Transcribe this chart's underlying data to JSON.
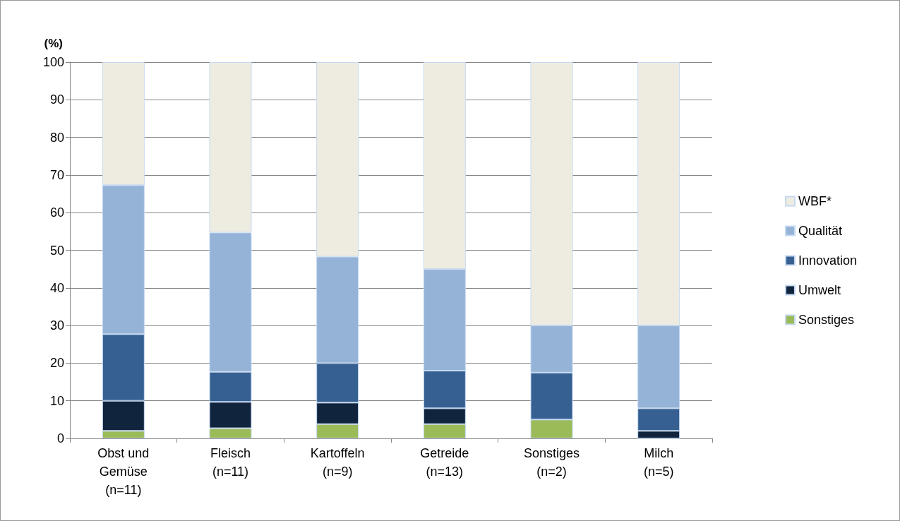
{
  "chart_data": {
    "type": "bar",
    "stacked": true,
    "ylabel": "(%)",
    "categories": [
      "Obst und\nGemüse\n(n=11)",
      "Fleisch\n(n=11)",
      "Kartoffeln\n(n=9)",
      "Getreide\n(n=13)",
      "Sonstiges\n(n=2)",
      "Milch\n(n=5)"
    ],
    "series": [
      {
        "name": "Sonstiges",
        "color": "#9bbb59",
        "values": [
          2,
          2.7,
          3.8,
          3.8,
          5,
          0
        ]
      },
      {
        "name": "Umwelt",
        "color": "#10243e",
        "values": [
          8,
          7,
          5.7,
          4.2,
          0,
          2
        ]
      },
      {
        "name": "Innovation",
        "color": "#366092",
        "values": [
          17.7,
          8,
          10.5,
          10,
          12.5,
          6
        ]
      },
      {
        "name": "Qualität",
        "color": "#95b3d7",
        "values": [
          39.6,
          37,
          28.3,
          27,
          12.5,
          22
        ]
      },
      {
        "name": "WBF*",
        "color": "#eeece1",
        "values": [
          32.7,
          45.3,
          51.7,
          55,
          70,
          70
        ]
      }
    ],
    "ylim": [
      0,
      100
    ],
    "yticks": [
      0,
      10,
      20,
      30,
      40,
      50,
      60,
      70,
      80,
      90,
      100
    ],
    "grid": "y",
    "legend": "right"
  }
}
